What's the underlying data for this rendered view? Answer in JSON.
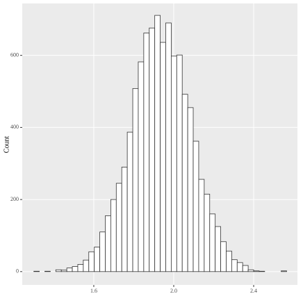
{
  "chart_data": {
    "type": "histogram",
    "y_label": "Count",
    "bins": [
      1.3,
      1.3275,
      1.355,
      1.3825,
      1.41,
      1.4375,
      1.465,
      1.4925,
      1.52,
      1.5475,
      1.575,
      1.6025,
      1.63,
      1.6575,
      1.685,
      1.7125,
      1.74,
      1.7675,
      1.795,
      1.8225,
      1.85,
      1.8775,
      1.905,
      1.9325,
      1.96,
      1.9875,
      2.015,
      2.0425,
      2.07,
      2.0975,
      2.125,
      2.1525,
      2.18,
      2.2075,
      2.235,
      2.2625,
      2.29,
      2.3175,
      2.345,
      2.3725,
      2.4,
      2.4275,
      2.455,
      2.4825,
      2.51,
      2.5375,
      2.565
    ],
    "values": [
      1,
      0,
      1,
      0,
      5,
      4,
      10,
      14,
      20,
      32,
      55,
      68,
      110,
      155,
      200,
      245,
      290,
      387,
      508,
      582,
      662,
      676,
      711,
      636,
      690,
      598,
      601,
      492,
      455,
      362,
      256,
      215,
      160,
      125,
      83,
      57,
      33,
      25,
      17,
      5,
      2,
      1,
      0,
      0,
      0,
      2
    ],
    "color": "#ffffff",
    "edge_color": "#333333",
    "xlim": [
      1.242,
      2.619
    ],
    "xticks": [
      1.6,
      {
        "value": 2.0,
        "label": "2.0"
      },
      2.4
    ],
    "ylim": [
      -37,
      744
    ],
    "yticks": [
      0,
      200,
      400,
      600
    ],
    "grid": true
  }
}
